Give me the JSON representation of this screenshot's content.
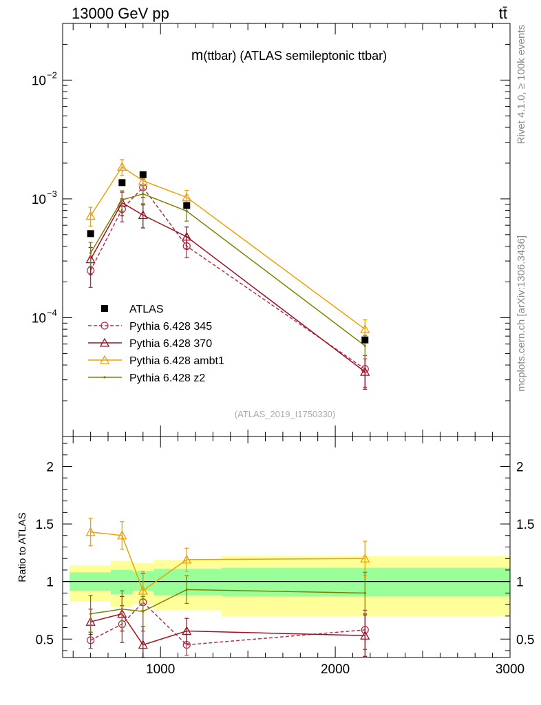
{
  "header": {
    "left": "13000 GeV pp",
    "right": "tt̄"
  },
  "side_labels": {
    "rivet": "Rivet 4.1.0, ≥ 100k events",
    "mcplots": "mcplots.cern.ch [arXiv:1306.3436]"
  },
  "chart_data": [
    {
      "type": "line",
      "panel": "main",
      "title": "m(ttbar) (ATLAS semileptonic ttbar)",
      "title_parts": {
        "m": "m",
        "rest": "(ttbar) (ATLAS semileptonic ttbar)"
      },
      "analysis_id": "(ATLAS_2019_I1750330)",
      "yscale": "log",
      "xlim": [
        440,
        3000
      ],
      "ylim": [
        1e-05,
        0.03
      ],
      "ytick_labels": [
        {
          "base": "10",
          "exp": "−2",
          "value": 0.01
        },
        {
          "base": "10",
          "exp": "−3",
          "value": 0.001
        },
        {
          "base": "10",
          "exp": "−4",
          "value": 0.0001
        }
      ],
      "legend_position": "lower-left",
      "legend": [
        "ATLAS",
        "Pythia 6.428 345",
        "Pythia 6.428 370",
        "Pythia 6.428 ambt1",
        "Pythia 6.428 z2"
      ],
      "bins": [
        [
          440,
          715
        ],
        [
          715,
          840
        ],
        [
          840,
          960
        ],
        [
          960,
          1350
        ],
        [
          1350,
          3000
        ]
      ],
      "x": [
        600,
        780,
        900,
        1150,
        2170
      ],
      "series": [
        {
          "name": "ATLAS",
          "color": "#000000",
          "style": "data",
          "marker": "filled-square",
          "values": [
            0.00051,
            0.00137,
            0.0016,
            0.00088,
            6.5e-05
          ]
        },
        {
          "name": "Pythia 6.428 345",
          "color": "#B03050",
          "style": "dashed",
          "marker": "open-circle",
          "values": [
            0.00025,
            0.00082,
            0.00125,
            0.0004,
            3.7e-05
          ],
          "err": [
            7e-05,
            0.00018,
            0.00022,
            8e-05,
            1.1e-05
          ]
        },
        {
          "name": "Pythia 6.428 370",
          "color": "#A01020",
          "style": "solid",
          "marker": "open-triangle",
          "values": [
            0.00031,
            0.00093,
            0.00073,
            0.00048,
            3.5e-05
          ],
          "err": [
            8e-05,
            0.00021,
            0.00016,
            0.0001,
            1e-05
          ]
        },
        {
          "name": "Pythia 6.428 ambt1",
          "color": "#F0A000",
          "style": "solid",
          "marker": "open-triangle",
          "values": [
            0.00072,
            0.00186,
            0.00142,
            0.00103,
            8e-05
          ],
          "err": [
            0.00013,
            0.00028,
            0.00022,
            0.00015,
            1.6e-05
          ]
        },
        {
          "name": "Pythia 6.428 z2",
          "color": "#808000",
          "style": "solid",
          "marker": "dot",
          "values": [
            0.00035,
            0.00098,
            0.0011,
            0.00079,
            5.8e-05
          ],
          "err": [
            8e-05,
            0.00019,
            0.00019,
            0.00014,
            1.3e-05
          ]
        }
      ]
    },
    {
      "type": "line",
      "panel": "ratio",
      "ylabel": "Ratio to ATLAS",
      "yscale": "linear",
      "xlim": [
        440,
        3000
      ],
      "ylim": [
        0.34,
        2.26
      ],
      "ytick_labels": [
        "2",
        "1.5",
        "1",
        "0.5"
      ],
      "ytick_values": [
        2,
        1.5,
        1,
        0.5
      ],
      "xtick_labels": [
        "1000",
        "2000",
        "3000"
      ],
      "xtick_values": [
        1000,
        2000,
        3000
      ],
      "bands": {
        "green": {
          "color": "#99ff99",
          "lo": [
            0.92,
            0.89,
            0.92,
            0.88,
            0.87
          ],
          "hi": [
            1.08,
            1.1,
            1.09,
            1.11,
            1.12
          ]
        },
        "yellow": {
          "color": "#ffff99",
          "lo": [
            0.83,
            0.78,
            0.8,
            0.75,
            0.7
          ],
          "hi": [
            1.14,
            1.18,
            1.16,
            1.19,
            1.22
          ]
        }
      },
      "series": [
        {
          "name": "Pythia 6.428 345",
          "color": "#B03050",
          "style": "dashed",
          "marker": "open-circle",
          "values": [
            0.49,
            0.63,
            0.82,
            0.45,
            0.58
          ],
          "err": [
            0.07,
            0.16,
            0.25,
            0.09,
            0.17
          ]
        },
        {
          "name": "Pythia 6.428 370",
          "color": "#A01020",
          "style": "solid",
          "marker": "open-triangle",
          "values": [
            0.65,
            0.72,
            0.45,
            0.57,
            0.53
          ],
          "err": [
            0.11,
            0.15,
            0.16,
            0.11,
            0.18
          ]
        },
        {
          "name": "Pythia 6.428 ambt1",
          "color": "#F0A000",
          "style": "solid",
          "marker": "open-triangle",
          "values": [
            1.43,
            1.4,
            0.92,
            1.19,
            1.2
          ],
          "err": [
            0.12,
            0.12,
            0.17,
            0.1,
            0.15
          ]
        },
        {
          "name": "Pythia 6.428 z2",
          "color": "#808000",
          "style": "solid",
          "marker": "dot",
          "values": [
            0.72,
            0.76,
            0.74,
            0.93,
            0.9
          ],
          "err": [
            0.16,
            0.16,
            0.13,
            0.12,
            0.18
          ]
        }
      ]
    }
  ]
}
